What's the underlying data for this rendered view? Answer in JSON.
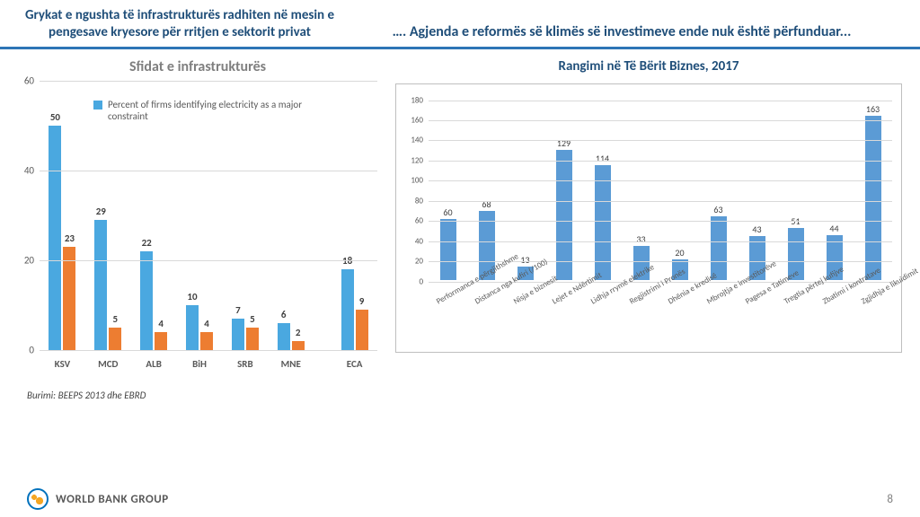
{
  "header": {
    "left": "Grykat e ngushta të infrastrukturës radhiten në mesin e pengesave kryesore për rritjen e sektorit privat",
    "right": "…. Agjenda e reformës së klimës së investimeve ende nuk është përfunduar..."
  },
  "divider_color": "#2e75b6",
  "left_chart": {
    "title": "Sfidat e infrastrukturës",
    "type": "grouped-bar",
    "ymax": 60,
    "ytick_step": 20,
    "yticks": [
      0,
      20,
      40,
      60
    ],
    "legend_label": "Percent of firms identifying electricity as a major constraint",
    "series_colors": [
      "#4aa8e0",
      "#ed7d31"
    ],
    "groups": [
      {
        "label": "KSV",
        "values": [
          50,
          23
        ]
      },
      {
        "label": "MCD",
        "values": [
          29,
          5
        ]
      },
      {
        "label": "ALB",
        "values": [
          22,
          4
        ]
      },
      {
        "label": "BiH",
        "values": [
          10,
          4
        ]
      },
      {
        "label": "SRB",
        "values": [
          7,
          5
        ]
      },
      {
        "label": "MNE",
        "values": [
          6,
          2
        ]
      },
      {
        "label": "ECA",
        "values": [
          18,
          9
        ],
        "gap_before": true
      }
    ],
    "grid_color": "#d9d9d9",
    "axis_color": "#808080"
  },
  "source_note": "Burimi: BEEPS 2013 dhe EBRD",
  "right_chart": {
    "title": "Rangimi në Të Bërit Biznes, 2017",
    "type": "bar",
    "ymax": 180,
    "ytick_step": 20,
    "yticks": [
      0,
      20,
      40,
      60,
      80,
      100,
      120,
      140,
      160,
      180
    ],
    "bar_color": "#5b9bd5",
    "border_color": "#bfbfbf",
    "grid_color": "#d9d9d9",
    "data": [
      {
        "label": "Performanca e përgjithshme",
        "value": 60
      },
      {
        "label": "Distanca nga kufiri (/100)",
        "value": 68
      },
      {
        "label": "Nisja e biznesit",
        "value": 13
      },
      {
        "label": "Lejet e Ndërtimit",
        "value": 129
      },
      {
        "label": "Lidhja rrymë elektrike",
        "value": 114
      },
      {
        "label": "Regjistrimi i Pronës",
        "value": 33
      },
      {
        "label": "Dhënia e kredisë",
        "value": 20
      },
      {
        "label": "Mbrojtja e investitorëve",
        "value": 63
      },
      {
        "label": "Pagesa e Tatimeve",
        "value": 43
      },
      {
        "label": "Tregtia përtej kufijve",
        "value": 51
      },
      {
        "label": "Zbatimi i kontratave",
        "value": 44
      },
      {
        "label": "Zgjidhja e likuidimit",
        "value": 163
      }
    ]
  },
  "footer": {
    "logo_text": "WORLD BANK GROUP",
    "page": "8"
  }
}
